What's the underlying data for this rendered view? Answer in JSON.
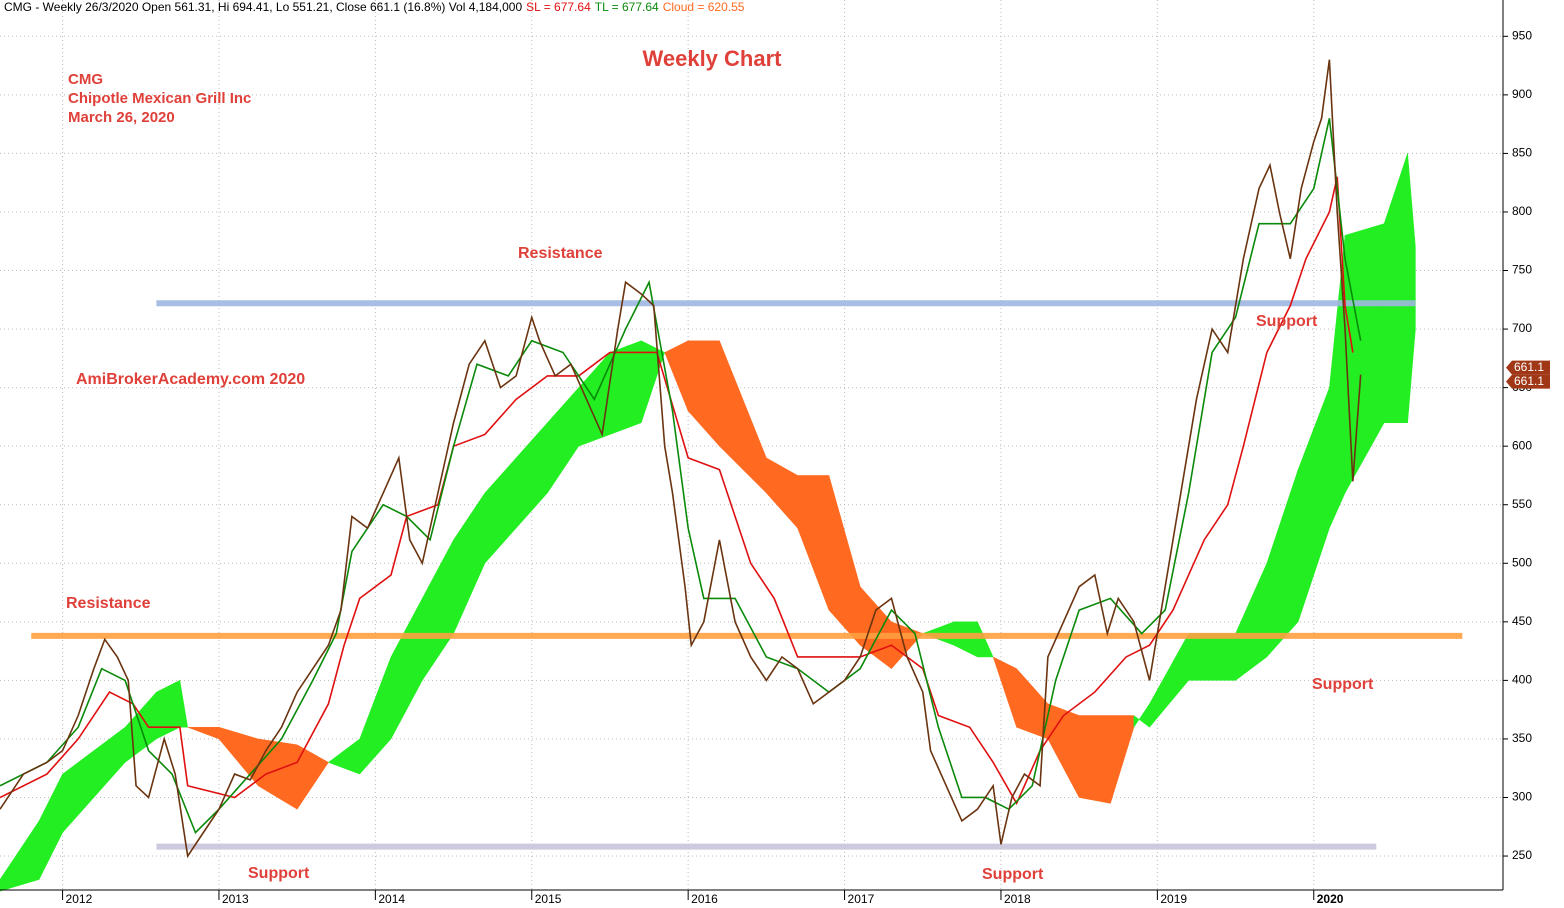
{
  "chart_data": {
    "type": "line",
    "header": "CMG - Weekly 26/3/2020 Open 561.31, Hi 694.41, Lo 551.21, Close 661.1 (16.8%) Vol 4,184,000",
    "header_sl": "SL = 677.64",
    "header_tl": "TL = 677.64",
    "header_cloud": "Cloud = 620.55",
    "title": "Weekly Chart",
    "annotations": [
      "CMG",
      "Chipotle Mexican Grill Inc",
      "March 26, 2020",
      "AmiBrokerAcademy.com  2020",
      "Resistance",
      "Resistance",
      "Support",
      "Support",
      "Support",
      "Support"
    ],
    "xlim": [
      2011.6,
      2021.21
    ],
    "xticks": [
      2012,
      2013,
      2014,
      2015,
      2016,
      2017,
      2018,
      2019,
      2020
    ],
    "ylim": [
      221,
      981
    ],
    "yticks": [
      250,
      300,
      350,
      400,
      450,
      500,
      550,
      600,
      650,
      700,
      750,
      800,
      850,
      900,
      950
    ],
    "grid": true,
    "last_value": 661.1,
    "series": [
      {
        "name": "Close",
        "color": "#6b3410",
        "x": [
          2011.6,
          2011.75,
          2011.9,
          2012.0,
          2012.1,
          2012.2,
          2012.27,
          2012.35,
          2012.42,
          2012.47,
          2012.55,
          2012.65,
          2012.72,
          2012.8,
          2012.9,
          2013.0,
          2013.1,
          2013.2,
          2013.3,
          2013.4,
          2013.5,
          2013.6,
          2013.7,
          2013.78,
          2013.85,
          2013.95,
          2014.05,
          2014.15,
          2014.22,
          2014.3,
          2014.4,
          2014.5,
          2014.6,
          2014.7,
          2014.8,
          2014.9,
          2015.0,
          2015.05,
          2015.15,
          2015.25,
          2015.35,
          2015.45,
          2015.55,
          2015.6,
          2015.7,
          2015.78,
          2015.85,
          2015.9,
          2015.98,
          2016.02,
          2016.1,
          2016.2,
          2016.3,
          2016.4,
          2016.5,
          2016.6,
          2016.7,
          2016.8,
          2016.9,
          2017.0,
          2017.1,
          2017.2,
          2017.3,
          2017.4,
          2017.5,
          2017.55,
          2017.65,
          2017.75,
          2017.85,
          2017.95,
          2018.0,
          2018.07,
          2018.15,
          2018.25,
          2018.3,
          2018.4,
          2018.5,
          2018.6,
          2018.68,
          2018.75,
          2018.85,
          2018.95,
          2019.05,
          2019.15,
          2019.25,
          2019.35,
          2019.45,
          2019.55,
          2019.65,
          2019.72,
          2019.78,
          2019.85,
          2019.92,
          2020.0,
          2020.05,
          2020.1,
          2020.15,
          2020.2,
          2020.25,
          2020.3
        ],
        "values": [
          290,
          320,
          330,
          340,
          370,
          410,
          435,
          420,
          400,
          310,
          300,
          350,
          320,
          250,
          270,
          290,
          320,
          315,
          340,
          360,
          390,
          410,
          430,
          460,
          540,
          530,
          560,
          590,
          520,
          500,
          560,
          620,
          670,
          690,
          650,
          660,
          710,
          690,
          660,
          670,
          640,
          610,
          700,
          740,
          730,
          720,
          600,
          560,
          480,
          430,
          450,
          520,
          450,
          420,
          400,
          420,
          410,
          380,
          390,
          400,
          420,
          460,
          470,
          420,
          390,
          340,
          310,
          280,
          290,
          310,
          260,
          300,
          320,
          310,
          420,
          450,
          480,
          490,
          440,
          470,
          450,
          400,
          480,
          560,
          640,
          700,
          680,
          760,
          820,
          840,
          800,
          760,
          820,
          860,
          880,
          930,
          800,
          700,
          570,
          661
        ]
      },
      {
        "name": "SL",
        "color": "#e01010",
        "x": [
          2011.6,
          2011.9,
          2012.1,
          2012.3,
          2012.45,
          2012.55,
          2012.75,
          2012.8,
          2013.1,
          2013.3,
          2013.5,
          2013.7,
          2013.8,
          2013.9,
          2014.1,
          2014.2,
          2014.4,
          2014.5,
          2014.7,
          2014.9,
          2015.1,
          2015.3,
          2015.5,
          2015.8,
          2016.0,
          2016.2,
          2016.4,
          2016.55,
          2016.7,
          2016.9,
          2017.1,
          2017.3,
          2017.5,
          2017.6,
          2017.8,
          2017.95,
          2018.1,
          2018.25,
          2018.4,
          2018.6,
          2018.8,
          2018.95,
          2019.1,
          2019.3,
          2019.45,
          2019.55,
          2019.7,
          2019.85,
          2019.95,
          2020.1,
          2020.15,
          2020.2,
          2020.25
        ],
        "values": [
          300,
          320,
          350,
          390,
          380,
          360,
          360,
          310,
          300,
          320,
          330,
          380,
          430,
          470,
          490,
          540,
          550,
          600,
          610,
          640,
          660,
          660,
          680,
          680,
          590,
          580,
          500,
          470,
          420,
          420,
          420,
          430,
          410,
          370,
          360,
          330,
          295,
          340,
          370,
          390,
          420,
          430,
          460,
          520,
          550,
          600,
          680,
          720,
          760,
          800,
          830,
          720,
          680
        ]
      },
      {
        "name": "TL",
        "color": "#0a8a0a",
        "x": [
          2011.6,
          2011.9,
          2012.1,
          2012.25,
          2012.4,
          2012.55,
          2012.7,
          2012.85,
          2013.0,
          2013.2,
          2013.4,
          2013.6,
          2013.75,
          2013.85,
          2014.05,
          2014.2,
          2014.35,
          2014.5,
          2014.65,
          2014.85,
          2015.0,
          2015.2,
          2015.4,
          2015.6,
          2015.75,
          2015.9,
          2016.0,
          2016.1,
          2016.3,
          2016.5,
          2016.7,
          2016.9,
          2017.1,
          2017.3,
          2017.45,
          2017.6,
          2017.75,
          2017.9,
          2018.05,
          2018.2,
          2018.35,
          2018.5,
          2018.7,
          2018.9,
          2019.05,
          2019.2,
          2019.35,
          2019.5,
          2019.65,
          2019.85,
          2020.0,
          2020.1,
          2020.2,
          2020.3
        ],
        "values": [
          310,
          330,
          360,
          410,
          400,
          340,
          320,
          270,
          290,
          320,
          350,
          400,
          440,
          510,
          550,
          540,
          520,
          600,
          670,
          660,
          690,
          680,
          640,
          700,
          740,
          630,
          530,
          470,
          470,
          420,
          410,
          390,
          410,
          460,
          440,
          360,
          300,
          300,
          290,
          310,
          400,
          460,
          470,
          440,
          460,
          560,
          680,
          710,
          790,
          790,
          820,
          880,
          760,
          690
        ]
      }
    ],
    "cloud": {
      "name": "Cloud",
      "x": [
        2011.6,
        2011.85,
        2012.0,
        2012.2,
        2012.4,
        2012.6,
        2012.75,
        2012.8,
        2013.0,
        2013.25,
        2013.5,
        2013.7,
        2013.9,
        2014.1,
        2014.3,
        2014.5,
        2014.7,
        2014.9,
        2015.1,
        2015.3,
        2015.5,
        2015.7,
        2015.85,
        2016.0,
        2016.2,
        2016.35,
        2016.5,
        2016.7,
        2016.9,
        2017.1,
        2017.3,
        2017.5,
        2017.7,
        2017.85,
        2017.95,
        2018.1,
        2018.3,
        2018.5,
        2018.7,
        2018.85,
        2018.95,
        2019.2,
        2019.5,
        2019.7,
        2019.9,
        2020.1,
        2020.2,
        2020.45,
        2020.6,
        2020.65
      ],
      "span_a": [
        230,
        280,
        320,
        340,
        360,
        390,
        400,
        360,
        350,
        310,
        290,
        330,
        350,
        420,
        470,
        520,
        560,
        590,
        620,
        650,
        680,
        690,
        680,
        630,
        600,
        580,
        560,
        530,
        460,
        430,
        410,
        440,
        450,
        450,
        420,
        360,
        350,
        300,
        295,
        360,
        380,
        440,
        440,
        500,
        580,
        650,
        780,
        790,
        850,
        770
      ],
      "span_b": [
        220,
        230,
        270,
        300,
        330,
        350,
        360,
        360,
        360,
        350,
        345,
        330,
        320,
        350,
        400,
        440,
        500,
        530,
        560,
        600,
        610,
        620,
        680,
        690,
        690,
        640,
        590,
        575,
        575,
        480,
        450,
        440,
        430,
        420,
        420,
        410,
        380,
        370,
        370,
        370,
        360,
        400,
        400,
        420,
        450,
        530,
        560,
        620,
        620,
        700
      ],
      "up_color": "#22ee22",
      "down_color": "#ff6a20"
    },
    "hlines": [
      {
        "value": 722,
        "from": 2012.6,
        "to": 2020.65,
        "color": "#9fb6e0"
      },
      {
        "value": 438,
        "from": 2011.8,
        "to": 2020.95,
        "color": "#ffa040"
      },
      {
        "value": 258,
        "from": 2012.6,
        "to": 2020.4,
        "color": "#c8c4dc"
      }
    ]
  }
}
